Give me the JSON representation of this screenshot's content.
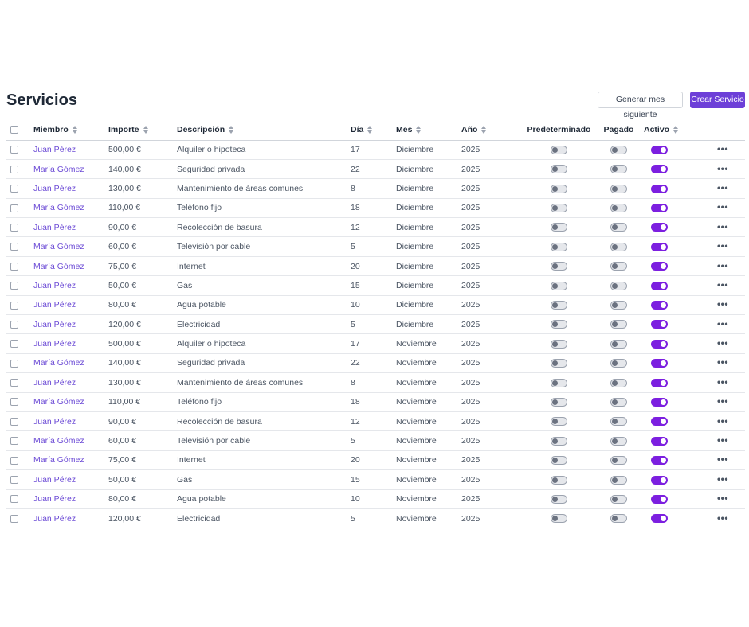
{
  "page": {
    "title": "Servicios",
    "generate_label": "Generar mes siguiente",
    "create_label": "Crear Servicio"
  },
  "columns": {
    "member": "Miembro",
    "amount": "Importe",
    "description": "Descripción",
    "day": "Día",
    "month": "Mes",
    "year": "Año",
    "default": "Predeterminado",
    "paid": "Pagado",
    "active": "Activo"
  },
  "icons": {
    "sort": "sort-icon",
    "more": "more-icon",
    "checkbox": "checkbox"
  },
  "colors": {
    "accent": "#6d3fd8",
    "link": "#6d4cd6",
    "toggle_on": "#7c1fe0"
  },
  "rows": [
    {
      "member": "Juan Pérez",
      "amount": "500,00 €",
      "description": "Alquiler o hipoteca",
      "day": "17",
      "month": "Diciembre",
      "year": "2025",
      "default": false,
      "paid": false,
      "active": true
    },
    {
      "member": "María Gómez",
      "amount": "140,00 €",
      "description": "Seguridad privada",
      "day": "22",
      "month": "Diciembre",
      "year": "2025",
      "default": false,
      "paid": false,
      "active": true
    },
    {
      "member": "Juan Pérez",
      "amount": "130,00 €",
      "description": "Mantenimiento de áreas comunes",
      "day": "8",
      "month": "Diciembre",
      "year": "2025",
      "default": false,
      "paid": false,
      "active": true
    },
    {
      "member": "María Gómez",
      "amount": "110,00 €",
      "description": "Teléfono fijo",
      "day": "18",
      "month": "Diciembre",
      "year": "2025",
      "default": false,
      "paid": false,
      "active": true
    },
    {
      "member": "Juan Pérez",
      "amount": "90,00 €",
      "description": "Recolección de basura",
      "day": "12",
      "month": "Diciembre",
      "year": "2025",
      "default": false,
      "paid": false,
      "active": true
    },
    {
      "member": "María Gómez",
      "amount": "60,00 €",
      "description": "Televisión por cable",
      "day": "5",
      "month": "Diciembre",
      "year": "2025",
      "default": false,
      "paid": false,
      "active": true
    },
    {
      "member": "María Gómez",
      "amount": "75,00 €",
      "description": "Internet",
      "day": "20",
      "month": "Diciembre",
      "year": "2025",
      "default": false,
      "paid": false,
      "active": true
    },
    {
      "member": "Juan Pérez",
      "amount": "50,00 €",
      "description": "Gas",
      "day": "15",
      "month": "Diciembre",
      "year": "2025",
      "default": false,
      "paid": false,
      "active": true
    },
    {
      "member": "Juan Pérez",
      "amount": "80,00 €",
      "description": "Agua potable",
      "day": "10",
      "month": "Diciembre",
      "year": "2025",
      "default": false,
      "paid": false,
      "active": true
    },
    {
      "member": "Juan Pérez",
      "amount": "120,00 €",
      "description": "Electricidad",
      "day": "5",
      "month": "Diciembre",
      "year": "2025",
      "default": false,
      "paid": false,
      "active": true
    },
    {
      "member": "Juan Pérez",
      "amount": "500,00 €",
      "description": "Alquiler o hipoteca",
      "day": "17",
      "month": "Noviembre",
      "year": "2025",
      "default": false,
      "paid": false,
      "active": true
    },
    {
      "member": "María Gómez",
      "amount": "140,00 €",
      "description": "Seguridad privada",
      "day": "22",
      "month": "Noviembre",
      "year": "2025",
      "default": false,
      "paid": false,
      "active": true
    },
    {
      "member": "Juan Pérez",
      "amount": "130,00 €",
      "description": "Mantenimiento de áreas comunes",
      "day": "8",
      "month": "Noviembre",
      "year": "2025",
      "default": false,
      "paid": false,
      "active": true
    },
    {
      "member": "María Gómez",
      "amount": "110,00 €",
      "description": "Teléfono fijo",
      "day": "18",
      "month": "Noviembre",
      "year": "2025",
      "default": false,
      "paid": false,
      "active": true
    },
    {
      "member": "Juan Pérez",
      "amount": "90,00 €",
      "description": "Recolección de basura",
      "day": "12",
      "month": "Noviembre",
      "year": "2025",
      "default": false,
      "paid": false,
      "active": true
    },
    {
      "member": "María Gómez",
      "amount": "60,00 €",
      "description": "Televisión por cable",
      "day": "5",
      "month": "Noviembre",
      "year": "2025",
      "default": false,
      "paid": false,
      "active": true
    },
    {
      "member": "María Gómez",
      "amount": "75,00 €",
      "description": "Internet",
      "day": "20",
      "month": "Noviembre",
      "year": "2025",
      "default": false,
      "paid": false,
      "active": true
    },
    {
      "member": "Juan Pérez",
      "amount": "50,00 €",
      "description": "Gas",
      "day": "15",
      "month": "Noviembre",
      "year": "2025",
      "default": false,
      "paid": false,
      "active": true
    },
    {
      "member": "Juan Pérez",
      "amount": "80,00 €",
      "description": "Agua potable",
      "day": "10",
      "month": "Noviembre",
      "year": "2025",
      "default": false,
      "paid": false,
      "active": true
    },
    {
      "member": "Juan Pérez",
      "amount": "120,00 €",
      "description": "Electricidad",
      "day": "5",
      "month": "Noviembre",
      "year": "2025",
      "default": false,
      "paid": false,
      "active": true
    }
  ]
}
